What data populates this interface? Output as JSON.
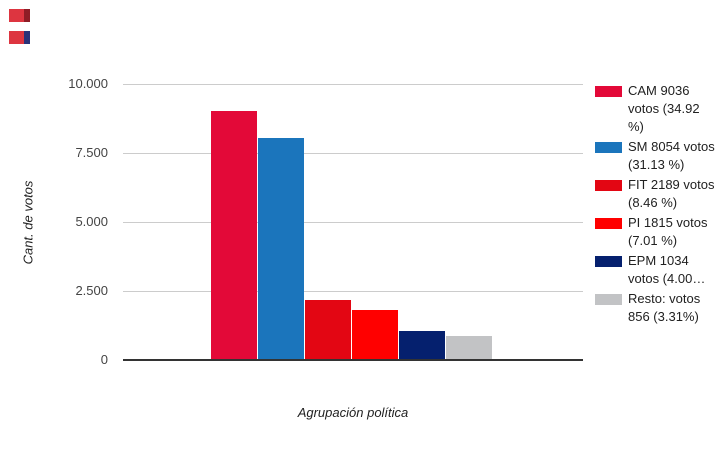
{
  "corner_icons": [
    {
      "name": "flag-icon",
      "body_color": "#DD3540",
      "edge_color": "#8E1D26"
    },
    {
      "name": "flag-icon",
      "body_color": "#DD3540",
      "edge_color": "#2A3278"
    }
  ],
  "chart_data": {
    "type": "bar",
    "title": "",
    "xlabel": "Agrupación política",
    "ylabel": "Cant. de votos",
    "ylim": [
      0,
      10000
    ],
    "grid": true,
    "legend_position": "right",
    "categories": [
      "Agrupación política"
    ],
    "yticks": [
      {
        "label": "0",
        "value": 0
      },
      {
        "label": "2.500",
        "value": 2500
      },
      {
        "label": "5.000",
        "value": 5000
      },
      {
        "label": "7.500",
        "value": 7500
      },
      {
        "label": "10.000",
        "value": 10000
      }
    ],
    "series": [
      {
        "name": "CAM",
        "votes": 9036,
        "percent": 34.92,
        "color": "#E30938",
        "legend_label": "CAM 9036 votos (34.92 %)"
      },
      {
        "name": "SM",
        "votes": 8054,
        "percent": 31.13,
        "color": "#1B75BC",
        "legend_label": "SM 8054 votos (31.13 %)"
      },
      {
        "name": "FIT",
        "votes": 2189,
        "percent": 8.46,
        "color": "#E30613",
        "legend_label": "FIT 2189 votos (8.46 %)"
      },
      {
        "name": "PI",
        "votes": 1815,
        "percent": 7.01,
        "color": "#FF0000",
        "legend_label": "PI 1815 votos (7.01 %)"
      },
      {
        "name": "EPM",
        "votes": 1034,
        "percent": 4.0,
        "color": "#05206E",
        "legend_label": "EPM 1034 votos (4.00…"
      },
      {
        "name": "Resto",
        "votes": 856,
        "percent": 3.31,
        "color": "#C2C3C5",
        "legend_label": "Resto: votos 856 (3.31%)"
      }
    ]
  }
}
